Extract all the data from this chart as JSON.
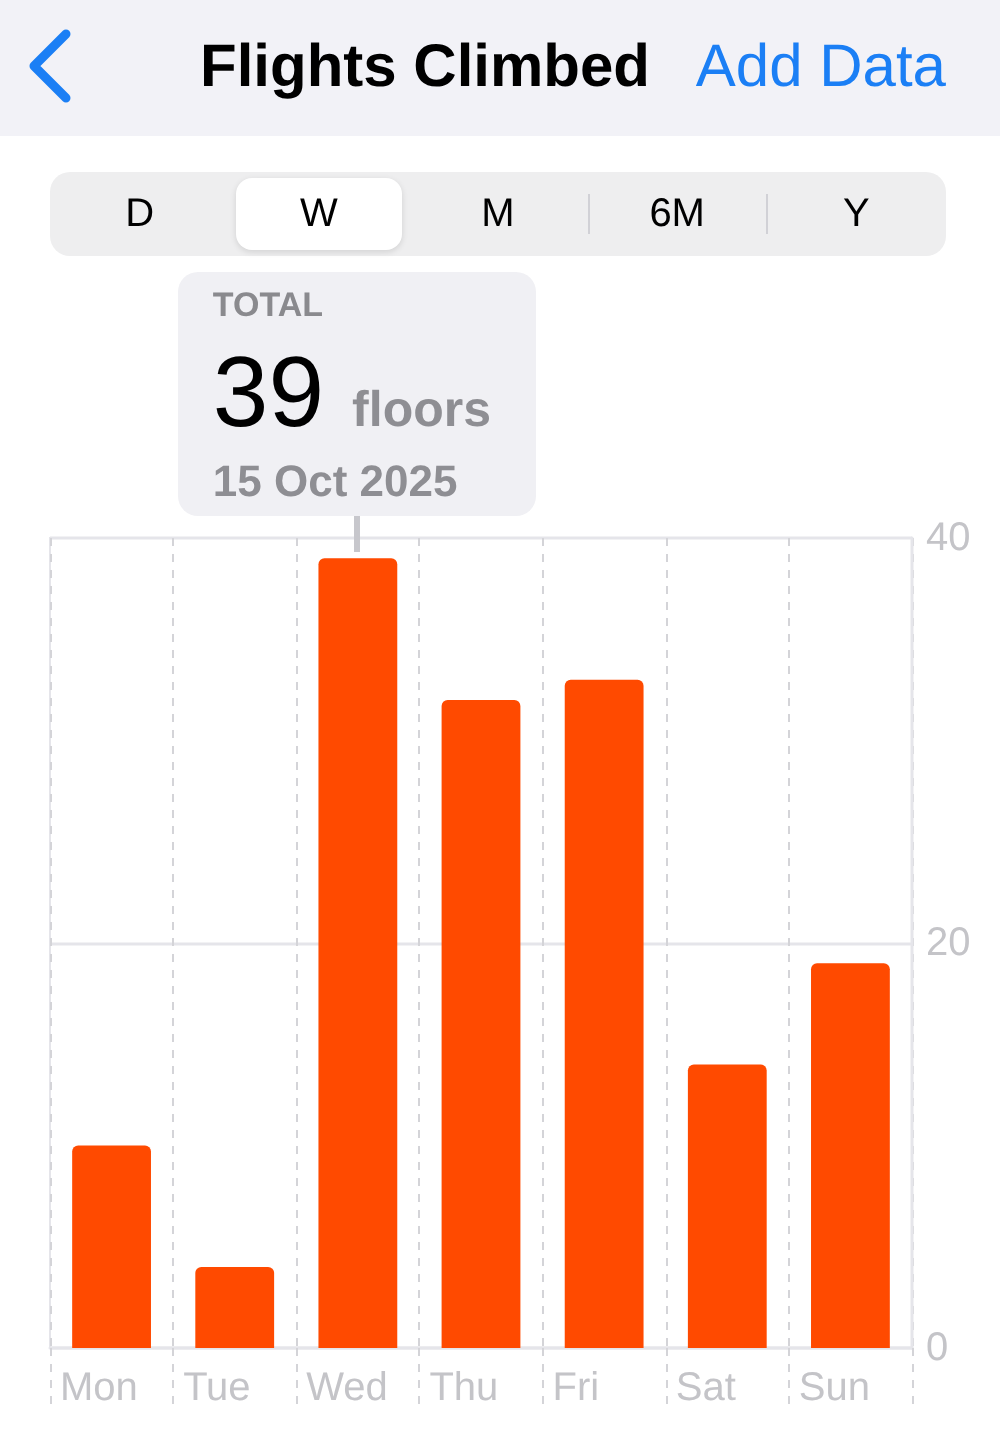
{
  "chart_data": {
    "type": "bar",
    "title": "Flights Climbed",
    "categories": [
      "Mon",
      "Tue",
      "Wed",
      "Thu",
      "Fri",
      "Sat",
      "Sun"
    ],
    "values": [
      10,
      4,
      39,
      32,
      33,
      14,
      19
    ],
    "color": "#ff4a00",
    "ylim": [
      0,
      40
    ],
    "yticks": [
      0,
      20,
      40
    ],
    "grid": true,
    "annotations": [
      "Add Data",
      "D",
      "W",
      "M",
      "6M",
      "Y",
      "TOTAL",
      {
        "text": "39",
        "x": "Wed",
        "y": 39
      },
      "floors",
      "15 Oct 2025"
    ]
  }
}
